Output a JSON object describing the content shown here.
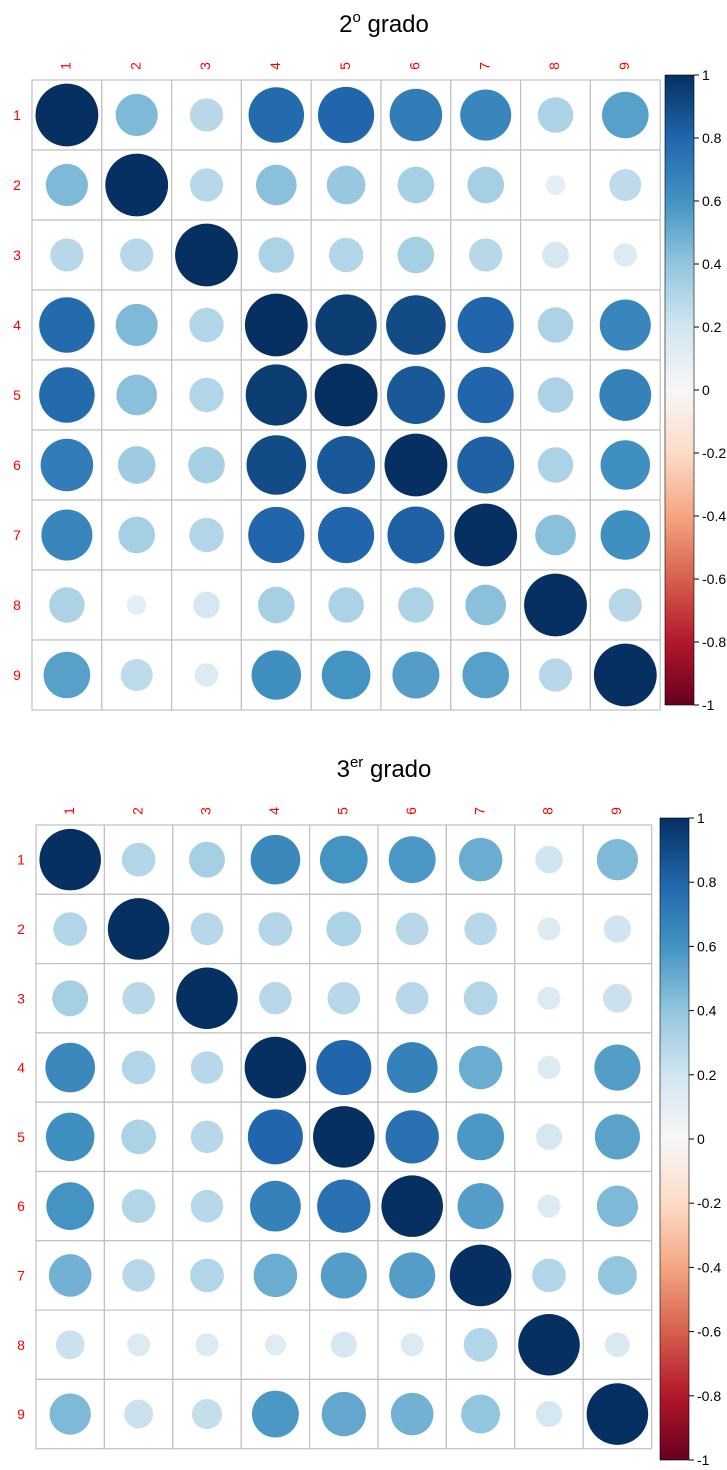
{
  "charts": [
    {
      "title_base": "2",
      "title_super": "o",
      "title_rest": " grado"
    },
    {
      "title_base": "3",
      "title_super": "er",
      "title_rest": " grado"
    }
  ],
  "colors": {
    "label": "#ff0000",
    "grid": "#c0c0c0",
    "text": "#000000"
  },
  "chart_data": [
    {
      "type": "heatmap",
      "title": "2º grado",
      "variables": [
        "1",
        "2",
        "3",
        "4",
        "5",
        "6",
        "7",
        "8",
        "9"
      ],
      "matrix": [
        [
          1.0,
          0.45,
          0.28,
          0.78,
          0.8,
          0.7,
          0.66,
          0.32,
          0.55
        ],
        [
          0.45,
          1.0,
          0.28,
          0.42,
          0.38,
          0.34,
          0.34,
          0.1,
          0.26
        ],
        [
          0.28,
          0.28,
          1.0,
          0.32,
          0.3,
          0.34,
          0.28,
          0.18,
          0.14
        ],
        [
          0.78,
          0.45,
          0.3,
          1.0,
          0.95,
          0.9,
          0.8,
          0.32,
          0.66
        ],
        [
          0.78,
          0.42,
          0.3,
          0.95,
          1.0,
          0.85,
          0.8,
          0.32,
          0.68
        ],
        [
          0.7,
          0.36,
          0.34,
          0.9,
          0.85,
          1.0,
          0.82,
          0.32,
          0.62
        ],
        [
          0.66,
          0.34,
          0.3,
          0.8,
          0.8,
          0.82,
          1.0,
          0.42,
          0.62
        ],
        [
          0.32,
          0.1,
          0.18,
          0.34,
          0.32,
          0.32,
          0.42,
          1.0,
          0.28
        ],
        [
          0.55,
          0.26,
          0.14,
          0.62,
          0.6,
          0.56,
          0.55,
          0.28,
          1.0
        ]
      ],
      "colorbar": {
        "range": [
          -1,
          1
        ],
        "ticks": [
          "1",
          "0.8",
          "0.6",
          "0.4",
          "0.2",
          "0",
          "-0.2",
          "-0.4",
          "-0.6",
          "-0.8",
          "-1"
        ]
      }
    },
    {
      "type": "heatmap",
      "title": "3er grado",
      "variables": [
        "1",
        "2",
        "3",
        "4",
        "5",
        "6",
        "7",
        "8",
        "9"
      ],
      "matrix": [
        [
          1.0,
          0.3,
          0.34,
          0.65,
          0.6,
          0.58,
          0.5,
          0.2,
          0.45
        ],
        [
          0.3,
          1.0,
          0.28,
          0.3,
          0.32,
          0.28,
          0.28,
          0.14,
          0.2
        ],
        [
          0.34,
          0.28,
          1.0,
          0.28,
          0.28,
          0.28,
          0.3,
          0.14,
          0.22
        ],
        [
          0.65,
          0.3,
          0.28,
          1.0,
          0.8,
          0.68,
          0.5,
          0.14,
          0.56
        ],
        [
          0.62,
          0.32,
          0.28,
          0.8,
          1.0,
          0.75,
          0.58,
          0.18,
          0.54
        ],
        [
          0.6,
          0.3,
          0.28,
          0.68,
          0.75,
          1.0,
          0.56,
          0.14,
          0.45
        ],
        [
          0.48,
          0.28,
          0.3,
          0.5,
          0.56,
          0.56,
          1.0,
          0.3,
          0.4
        ],
        [
          0.22,
          0.14,
          0.14,
          0.12,
          0.18,
          0.14,
          0.3,
          1.0,
          0.16
        ],
        [
          0.45,
          0.22,
          0.24,
          0.58,
          0.52,
          0.48,
          0.4,
          0.18,
          1.0
        ]
      ],
      "colorbar": {
        "range": [
          -1,
          1
        ],
        "ticks": [
          "1",
          "0.8",
          "0.6",
          "0.4",
          "0.2",
          "0",
          "-0.2",
          "-0.4",
          "-0.6",
          "-0.8",
          "-1"
        ]
      }
    }
  ]
}
